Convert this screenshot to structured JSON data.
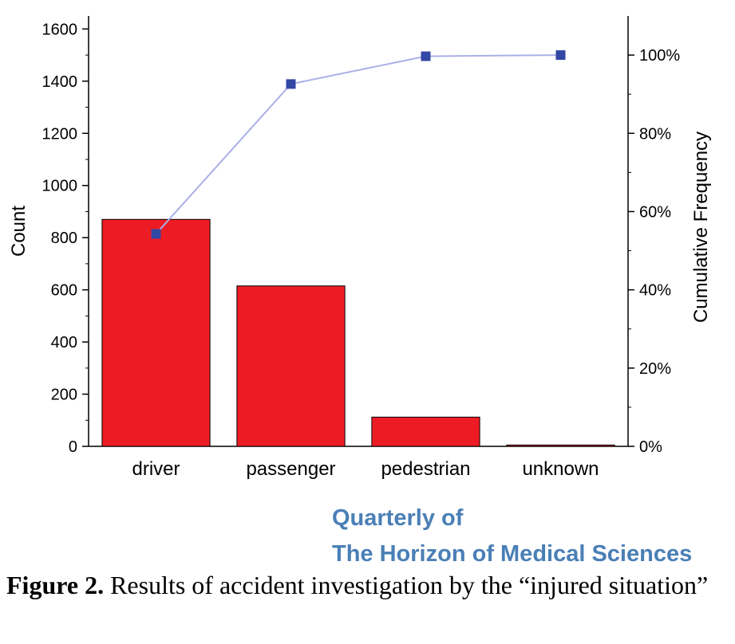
{
  "chart_data": {
    "type": "bar",
    "categories": [
      "driver",
      "passenger",
      "pedestrian",
      "unknown"
    ],
    "values": [
      870,
      615,
      112,
      5
    ],
    "cumulative_pct": [
      54.3,
      92.6,
      99.7,
      100.0
    ],
    "xlabel": "",
    "ylabel": "Count",
    "y2label": "Cumulative Frequency",
    "ylim": [
      0,
      1650
    ],
    "y2lim": [
      0,
      110
    ],
    "yticks": [
      0,
      200,
      400,
      600,
      800,
      1000,
      1200,
      1400,
      1600
    ],
    "y2ticks": [
      "0%",
      "20%",
      "40%",
      "60%",
      "80%",
      "100%"
    ],
    "y2tick_values": [
      0,
      20,
      40,
      60,
      80,
      100
    ],
    "bar_color": "#ed1c24",
    "line_color": "#aab0e6",
    "marker_color": "#3347a5",
    "grid": false
  },
  "watermark": {
    "line1": "Quarterly of",
    "line2": "The Horizon of Medical Sciences"
  },
  "caption": {
    "label": "Figure 2.",
    "text": " Results of accident investigation by the “injured situation”"
  }
}
